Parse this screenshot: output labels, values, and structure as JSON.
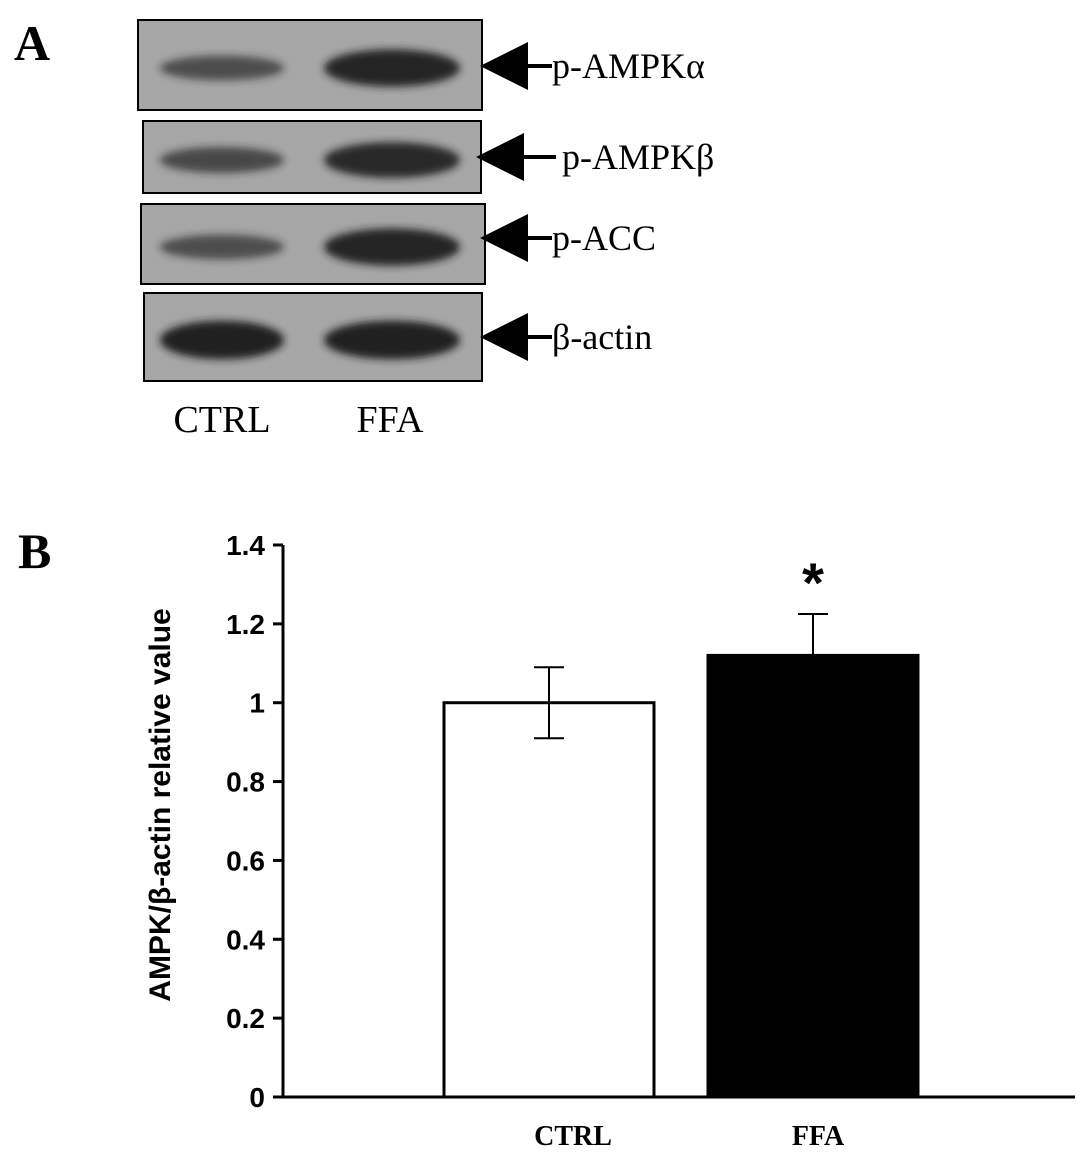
{
  "panels": {
    "a": "A",
    "b": "B"
  },
  "blot": {
    "bands": [
      {
        "label": "p-AMPKα",
        "ctrl_intensity": 0.45,
        "ffa_intensity": 0.9
      },
      {
        "label": "p-AMPKβ",
        "ctrl_intensity": 0.5,
        "ffa_intensity": 0.85
      },
      {
        "label": "p-ACC",
        "ctrl_intensity": 0.45,
        "ffa_intensity": 0.9
      },
      {
        "label": "β-actin",
        "ctrl_intensity": 0.95,
        "ffa_intensity": 0.95
      }
    ],
    "lanes": [
      "CTRL",
      "FFA"
    ],
    "colors": {
      "membrane": "#a6a6a6",
      "band": "#1a1a1a"
    }
  },
  "chart_data": {
    "type": "bar",
    "categories": [
      "CTRL",
      "FFA"
    ],
    "values": [
      1.0,
      1.12
    ],
    "errors": [
      0.09,
      0.105
    ],
    "significance": [
      "",
      "*"
    ],
    "bar_colors": [
      "#ffffff",
      "#000000"
    ],
    "title": "",
    "xlabel": "",
    "ylabel": "AMPK/β-actin relative value",
    "ylim": [
      0,
      1.4
    ],
    "yticks": [
      "0",
      "0.2",
      "0.4",
      "0.6",
      "0.8",
      "1",
      "1.2",
      "1.4"
    ],
    "grid": false
  }
}
